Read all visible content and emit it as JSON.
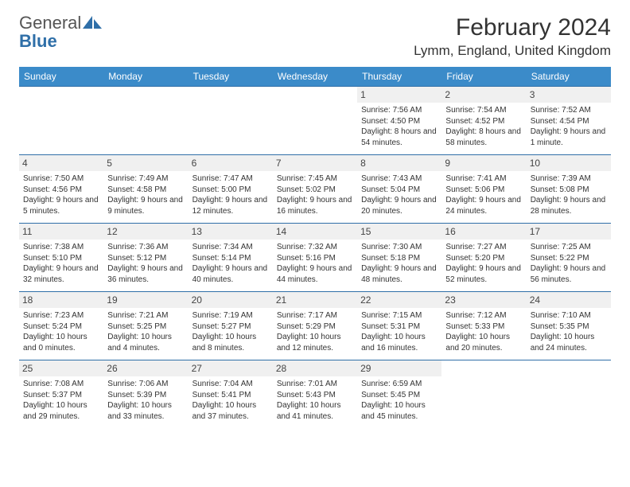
{
  "logo": {
    "word1": "General",
    "word2": "Blue",
    "icon_color": "#2f6fa8"
  },
  "title": "February 2024",
  "location": "Lymm, England, United Kingdom",
  "header_bg": "#3b8bc9",
  "header_text_color": "#ffffff",
  "grid_border_color": "#2f6fa8",
  "daynum_bg": "#f0f0f0",
  "body_text_color": "#333333",
  "font_family": "Arial",
  "title_fontsize_pt": 22,
  "location_fontsize_pt": 13,
  "header_fontsize_pt": 9,
  "cell_fontsize_pt": 7.5,
  "columns": [
    "Sunday",
    "Monday",
    "Tuesday",
    "Wednesday",
    "Thursday",
    "Friday",
    "Saturday"
  ],
  "first_weekday_index": 4,
  "days": [
    {
      "n": 1,
      "sunrise": "7:56 AM",
      "sunset": "4:50 PM",
      "daylight": "8 hours and 54 minutes."
    },
    {
      "n": 2,
      "sunrise": "7:54 AM",
      "sunset": "4:52 PM",
      "daylight": "8 hours and 58 minutes."
    },
    {
      "n": 3,
      "sunrise": "7:52 AM",
      "sunset": "4:54 PM",
      "daylight": "9 hours and 1 minute."
    },
    {
      "n": 4,
      "sunrise": "7:50 AM",
      "sunset": "4:56 PM",
      "daylight": "9 hours and 5 minutes."
    },
    {
      "n": 5,
      "sunrise": "7:49 AM",
      "sunset": "4:58 PM",
      "daylight": "9 hours and 9 minutes."
    },
    {
      "n": 6,
      "sunrise": "7:47 AM",
      "sunset": "5:00 PM",
      "daylight": "9 hours and 12 minutes."
    },
    {
      "n": 7,
      "sunrise": "7:45 AM",
      "sunset": "5:02 PM",
      "daylight": "9 hours and 16 minutes."
    },
    {
      "n": 8,
      "sunrise": "7:43 AM",
      "sunset": "5:04 PM",
      "daylight": "9 hours and 20 minutes."
    },
    {
      "n": 9,
      "sunrise": "7:41 AM",
      "sunset": "5:06 PM",
      "daylight": "9 hours and 24 minutes."
    },
    {
      "n": 10,
      "sunrise": "7:39 AM",
      "sunset": "5:08 PM",
      "daylight": "9 hours and 28 minutes."
    },
    {
      "n": 11,
      "sunrise": "7:38 AM",
      "sunset": "5:10 PM",
      "daylight": "9 hours and 32 minutes."
    },
    {
      "n": 12,
      "sunrise": "7:36 AM",
      "sunset": "5:12 PM",
      "daylight": "9 hours and 36 minutes."
    },
    {
      "n": 13,
      "sunrise": "7:34 AM",
      "sunset": "5:14 PM",
      "daylight": "9 hours and 40 minutes."
    },
    {
      "n": 14,
      "sunrise": "7:32 AM",
      "sunset": "5:16 PM",
      "daylight": "9 hours and 44 minutes."
    },
    {
      "n": 15,
      "sunrise": "7:30 AM",
      "sunset": "5:18 PM",
      "daylight": "9 hours and 48 minutes."
    },
    {
      "n": 16,
      "sunrise": "7:27 AM",
      "sunset": "5:20 PM",
      "daylight": "9 hours and 52 minutes."
    },
    {
      "n": 17,
      "sunrise": "7:25 AM",
      "sunset": "5:22 PM",
      "daylight": "9 hours and 56 minutes."
    },
    {
      "n": 18,
      "sunrise": "7:23 AM",
      "sunset": "5:24 PM",
      "daylight": "10 hours and 0 minutes."
    },
    {
      "n": 19,
      "sunrise": "7:21 AM",
      "sunset": "5:25 PM",
      "daylight": "10 hours and 4 minutes."
    },
    {
      "n": 20,
      "sunrise": "7:19 AM",
      "sunset": "5:27 PM",
      "daylight": "10 hours and 8 minutes."
    },
    {
      "n": 21,
      "sunrise": "7:17 AM",
      "sunset": "5:29 PM",
      "daylight": "10 hours and 12 minutes."
    },
    {
      "n": 22,
      "sunrise": "7:15 AM",
      "sunset": "5:31 PM",
      "daylight": "10 hours and 16 minutes."
    },
    {
      "n": 23,
      "sunrise": "7:12 AM",
      "sunset": "5:33 PM",
      "daylight": "10 hours and 20 minutes."
    },
    {
      "n": 24,
      "sunrise": "7:10 AM",
      "sunset": "5:35 PM",
      "daylight": "10 hours and 24 minutes."
    },
    {
      "n": 25,
      "sunrise": "7:08 AM",
      "sunset": "5:37 PM",
      "daylight": "10 hours and 29 minutes."
    },
    {
      "n": 26,
      "sunrise": "7:06 AM",
      "sunset": "5:39 PM",
      "daylight": "10 hours and 33 minutes."
    },
    {
      "n": 27,
      "sunrise": "7:04 AM",
      "sunset": "5:41 PM",
      "daylight": "10 hours and 37 minutes."
    },
    {
      "n": 28,
      "sunrise": "7:01 AM",
      "sunset": "5:43 PM",
      "daylight": "10 hours and 41 minutes."
    },
    {
      "n": 29,
      "sunrise": "6:59 AM",
      "sunset": "5:45 PM",
      "daylight": "10 hours and 45 minutes."
    }
  ],
  "labels": {
    "sunrise": "Sunrise:",
    "sunset": "Sunset:",
    "daylight": "Daylight:"
  }
}
